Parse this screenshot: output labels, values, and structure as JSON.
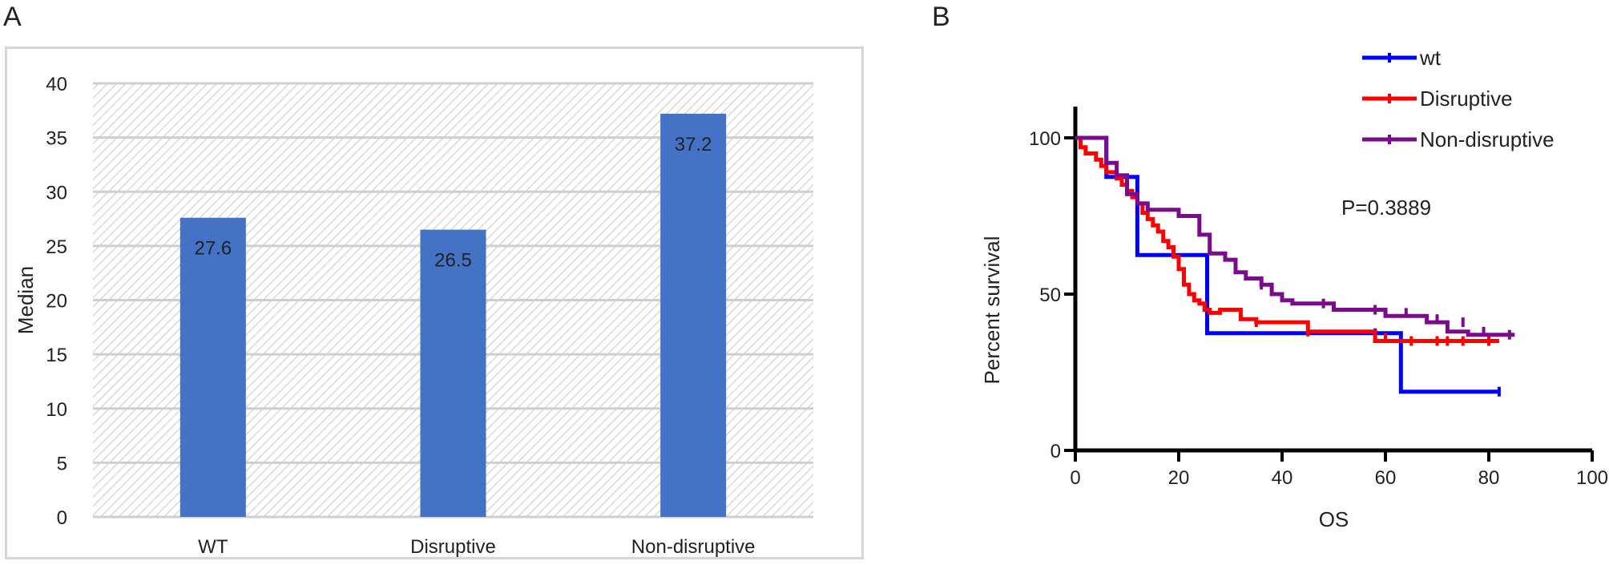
{
  "panels": {
    "a_letter": "A",
    "b_letter": "B"
  },
  "chart_data": [
    {
      "type": "bar",
      "ylabel": "Median",
      "xlabel": "",
      "ylim": [
        0,
        40
      ],
      "yticks": [
        0,
        5,
        10,
        15,
        20,
        25,
        30,
        35,
        40
      ],
      "categories": [
        "WT",
        "Disruptive",
        "Non-disruptive"
      ],
      "values": [
        27.6,
        26.5,
        37.2
      ],
      "data_labels": [
        "27.6",
        "26.5",
        "37.2"
      ],
      "bar_color": "#4472C4",
      "grid": true,
      "background": "hatched light gray"
    },
    {
      "type": "line",
      "subtype": "kaplan-meier step",
      "xlabel": "OS",
      "ylabel": "Percent survival",
      "xlim": [
        0,
        100
      ],
      "ylim": [
        0,
        100
      ],
      "xticks": [
        0,
        20,
        40,
        60,
        80,
        100
      ],
      "yticks": [
        0,
        50,
        100
      ],
      "annotation": "P=0.3889",
      "legend_position": "top-right",
      "series": [
        {
          "name": "wt",
          "color": "#0000FF",
          "x": [
            0,
            6,
            6,
            12,
            12,
            25.5,
            25.5,
            63,
            63,
            82
          ],
          "y": [
            100,
            100,
            87.5,
            87.5,
            62.5,
            62.5,
            37.5,
            37.5,
            18.8,
            18.8
          ],
          "censored": [
            [
              58,
              37.5
            ],
            [
              82,
              18.8
            ]
          ]
        },
        {
          "name": "Disruptive",
          "color": "#FF0000",
          "x": [
            0,
            1,
            1,
            2,
            2,
            4,
            4,
            5,
            5,
            6,
            6,
            8,
            8,
            9,
            9,
            10,
            10,
            11,
            11,
            12,
            12,
            13,
            13,
            14,
            14,
            15,
            15,
            16,
            16,
            17,
            17,
            18,
            18,
            19,
            19,
            20,
            20,
            21,
            21,
            22,
            22,
            23,
            23,
            24,
            24,
            25,
            25,
            26,
            26,
            28,
            28,
            32,
            32,
            35,
            35,
            45,
            45,
            58,
            58,
            82
          ],
          "y": [
            100,
            100,
            97,
            97,
            95,
            95,
            93,
            93,
            91,
            91,
            89,
            89,
            87,
            87,
            85,
            85,
            83,
            83,
            81,
            81,
            79,
            79,
            76,
            76,
            74,
            74,
            72,
            72,
            70,
            70,
            67,
            67,
            65,
            65,
            62,
            62,
            58,
            58,
            53,
            53,
            50,
            50,
            48,
            48,
            47,
            47,
            45,
            45,
            44,
            44,
            45,
            45,
            42,
            42,
            41,
            41,
            38,
            38,
            35,
            35
          ],
          "censored": [
            [
              35,
              41
            ],
            [
              45,
              38
            ],
            [
              60,
              36
            ],
            [
              65,
              35
            ],
            [
              70,
              35
            ],
            [
              72,
              35
            ],
            [
              75,
              35
            ],
            [
              80,
              35
            ]
          ]
        },
        {
          "name": "Non-disruptive",
          "color": "#7B0B8C",
          "x": [
            0,
            6,
            6,
            8,
            8,
            10,
            10,
            12,
            12,
            14,
            14,
            20,
            20,
            24,
            24,
            26,
            26,
            29,
            29,
            31,
            31,
            33,
            33,
            36,
            36,
            38,
            38,
            40,
            40,
            42,
            42,
            50,
            50,
            60,
            60,
            68,
            68,
            72,
            72,
            76,
            76,
            85
          ],
          "y": [
            100,
            100,
            92,
            92,
            88,
            88,
            82,
            82,
            79,
            79,
            77,
            77,
            75,
            75,
            69,
            69,
            63,
            63,
            61,
            61,
            57,
            57,
            55,
            55,
            53,
            53,
            50,
            50,
            48,
            48,
            47,
            47,
            45,
            45,
            43,
            43,
            41,
            41,
            38,
            38,
            37,
            37
          ],
          "censored": [
            [
              36,
              53
            ],
            [
              48,
              47
            ],
            [
              58,
              45
            ],
            [
              64,
              44
            ],
            [
              70,
              42
            ],
            [
              75,
              41
            ],
            [
              79,
              38
            ],
            [
              84,
              37
            ]
          ]
        }
      ]
    }
  ]
}
